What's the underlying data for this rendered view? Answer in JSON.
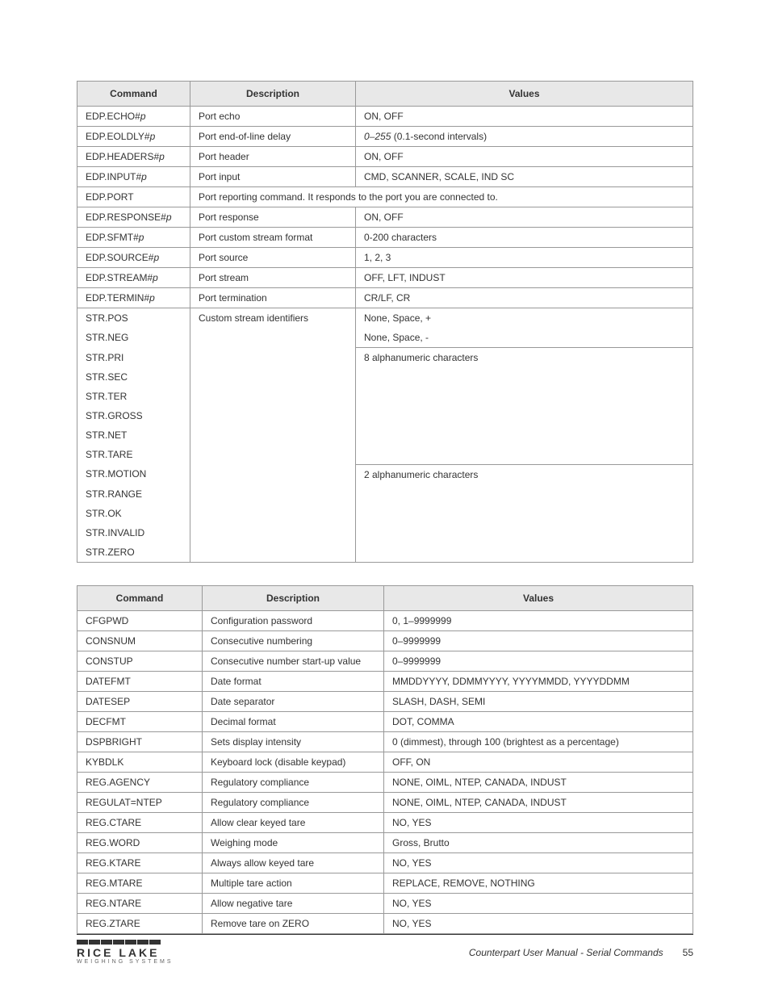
{
  "table1": {
    "headers": [
      "Command",
      "Description",
      "Values"
    ],
    "rows": [
      {
        "cmd": "EDP.ECHO#",
        "param": "p",
        "desc": "Port echo",
        "val": "ON, OFF"
      },
      {
        "cmd": "EDP.EOLDLY#",
        "param": "p",
        "desc": "Port end-of-line delay",
        "val_italic": "0–255",
        "val_rest": " (0.1-second intervals)"
      },
      {
        "cmd": "EDP.HEADERS#",
        "param": "p",
        "desc": "Port header",
        "val": "ON, OFF"
      },
      {
        "cmd": "EDP.INPUT#",
        "param": "p",
        "desc": "Port input",
        "val": "CMD, SCANNER, SCALE, IND SC"
      },
      {
        "cmd": "EDP.PORT",
        "desc_span": "Port reporting command. It responds to the port you are connected to."
      },
      {
        "cmd": "EDP.RESPONSE#",
        "param": "p",
        "desc": "Port response",
        "val": "ON, OFF"
      },
      {
        "cmd": "EDP.SFMT#",
        "param": "p",
        "desc": "Port custom stream format",
        "val": "0-200 characters"
      },
      {
        "cmd": "EDP.SOURCE#",
        "param": "p",
        "desc": "Port source",
        "val": "1, 2, 3"
      },
      {
        "cmd": "EDP.STREAM#",
        "param": "p",
        "desc": "Port stream",
        "val": "OFF, LFT, INDUST"
      },
      {
        "cmd": "EDP.TERMIN#",
        "param": "p",
        "desc": "Port termination",
        "val": "CR/LF, CR"
      }
    ],
    "group_rows": {
      "desc": "Custom stream identifiers",
      "items": [
        {
          "cmd": "STR.POS",
          "val": "None, Space, +"
        },
        {
          "cmd": "STR.NEG",
          "val": "None, Space, -"
        },
        {
          "cmd": "STR.PRI",
          "val": "8 alphanumeric characters"
        },
        {
          "cmd": "STR.SEC"
        },
        {
          "cmd": "STR.TER"
        },
        {
          "cmd": "STR.GROSS"
        },
        {
          "cmd": "STR.NET"
        },
        {
          "cmd": "STR.TARE"
        },
        {
          "cmd": "STR.MOTION",
          "val": "2 alphanumeric characters"
        },
        {
          "cmd": "STR.RANGE"
        },
        {
          "cmd": "STR.OK"
        },
        {
          "cmd": "STR.INVALID"
        },
        {
          "cmd": "STR.ZERO"
        }
      ]
    }
  },
  "table2": {
    "headers": [
      "Command",
      "Description",
      "Values"
    ],
    "rows": [
      {
        "cmd": "CFGPWD",
        "desc": "Configuration password",
        "val": "0, 1–9999999"
      },
      {
        "cmd": "CONSNUM",
        "desc": "Consecutive numbering",
        "val": "0–9999999"
      },
      {
        "cmd": "CONSTUP",
        "desc": "Consecutive number start-up value",
        "val": "0–9999999"
      },
      {
        "cmd": "DATEFMT",
        "desc": "Date format",
        "val": "MMDDYYYY, DDMMYYYY, YYYYMMDD, YYYYDDMM"
      },
      {
        "cmd": "DATESEP",
        "desc": "Date separator",
        "val": "SLASH, DASH, SEMI"
      },
      {
        "cmd": "DECFMT",
        "desc": "Decimal format",
        "val": "DOT, COMMA"
      },
      {
        "cmd": "DSPBRIGHT",
        "desc": "Sets display intensity",
        "val": "0 (dimmest), through 100 (brightest as a percentage)"
      },
      {
        "cmd": "KYBDLK",
        "desc": "Keyboard lock (disable keypad)",
        "val": "OFF, ON"
      },
      {
        "cmd": "REG.AGENCY",
        "desc": "Regulatory compliance",
        "val": "NONE, OIML, NTEP, CANADA, INDUST"
      },
      {
        "cmd": "REGULAT=NTEP",
        "desc": "Regulatory compliance",
        "val": "NONE, OIML, NTEP, CANADA, INDUST"
      },
      {
        "cmd": "REG.CTARE",
        "desc": "Allow clear keyed tare",
        "val": "NO, YES"
      },
      {
        "cmd": "REG.WORD",
        "desc": "Weighing mode",
        "val": "Gross, Brutto"
      },
      {
        "cmd": "REG.KTARE",
        "desc": "Always allow keyed tare",
        "val": "NO, YES"
      },
      {
        "cmd": "REG.MTARE",
        "desc": "Multiple tare action",
        "val": "REPLACE, REMOVE, NOTHING"
      },
      {
        "cmd": "REG.NTARE",
        "desc": "Allow negative tare",
        "val": "NO, YES"
      },
      {
        "cmd": "REG.ZTARE",
        "desc": "Remove tare on ZERO",
        "val": "NO, YES"
      }
    ]
  },
  "footer": {
    "logo_main": "RICE LAKE",
    "logo_sub": "WEIGHING SYSTEMS",
    "manual": "Counterpart User Manual - Serial Commands",
    "page": "55"
  }
}
